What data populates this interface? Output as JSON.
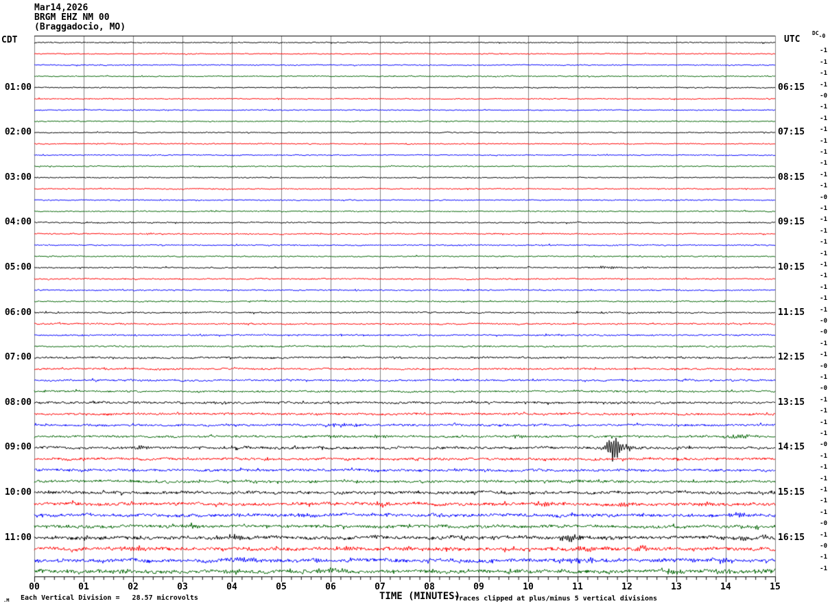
{
  "title": {
    "line1": "Mar14,2026",
    "line2": "BRGM EHZ NM 00",
    "line3": "(Braggadocio, MO)"
  },
  "axes": {
    "left_header": "CDT",
    "right_header": "UTC",
    "dc_header": "DC",
    "x_label": "TIME (MINUTES)",
    "x_ticks": [
      "00",
      "01",
      "02",
      "03",
      "04",
      "05",
      "06",
      "07",
      "08",
      "09",
      "10",
      "11",
      "12",
      "13",
      "14",
      "15"
    ],
    "x_range_minutes": [
      0,
      15
    ],
    "grid": "vertical lines each minute, 4 minor ticks per minute on bottom axis"
  },
  "footer": {
    "scale_note": "Each Vertical Division =   28.57 microvolts",
    "clip_note": "Traces clipped at plus/minus 5 vertical divisions",
    "corner_mark": ".M"
  },
  "colors": {
    "black": "#000000",
    "red": "#ff0000",
    "blue": "#0000ff",
    "green": "#006400",
    "grid": "#808080",
    "background": "#ffffff"
  },
  "chart_data": {
    "type": "line",
    "subtype": "helicorder",
    "minutes_per_line": 15,
    "lines_per_hour": 4,
    "clip_divisions": 5,
    "rows": [
      {
        "c": "black",
        "cdt": "",
        "utc": "",
        "dc": "-0",
        "n": 0.7,
        "w": 0.15,
        "ev": []
      },
      {
        "c": "red",
        "cdt": "",
        "utc": "",
        "dc": "-1",
        "n": 0.7,
        "w": 0.15,
        "ev": []
      },
      {
        "c": "blue",
        "cdt": "",
        "utc": "",
        "dc": "-1",
        "n": 0.7,
        "w": 0.15,
        "ev": []
      },
      {
        "c": "green",
        "cdt": "",
        "utc": "",
        "dc": "-1",
        "n": 0.7,
        "w": 0.15,
        "ev": []
      },
      {
        "c": "black",
        "cdt": "01:00",
        "utc": "06:15",
        "dc": "-1",
        "n": 0.7,
        "w": 0.15,
        "ev": []
      },
      {
        "c": "red",
        "cdt": "",
        "utc": "",
        "dc": "-0",
        "n": 0.7,
        "w": 0.15,
        "ev": []
      },
      {
        "c": "blue",
        "cdt": "",
        "utc": "",
        "dc": "-1",
        "n": 0.7,
        "w": 0.15,
        "ev": []
      },
      {
        "c": "green",
        "cdt": "",
        "utc": "",
        "dc": "-1",
        "n": 0.7,
        "w": 0.15,
        "ev": []
      },
      {
        "c": "black",
        "cdt": "02:00",
        "utc": "07:15",
        "dc": "-1",
        "n": 0.7,
        "w": 0.18,
        "ev": []
      },
      {
        "c": "red",
        "cdt": "",
        "utc": "",
        "dc": "-1",
        "n": 0.7,
        "w": 0.18,
        "ev": []
      },
      {
        "c": "blue",
        "cdt": "",
        "utc": "",
        "dc": "-1",
        "n": 0.7,
        "w": 0.18,
        "ev": []
      },
      {
        "c": "green",
        "cdt": "",
        "utc": "",
        "dc": "-1",
        "n": 0.7,
        "w": 0.18,
        "ev": []
      },
      {
        "c": "black",
        "cdt": "03:00",
        "utc": "08:15",
        "dc": "-1",
        "n": 0.75,
        "w": 0.2,
        "ev": []
      },
      {
        "c": "red",
        "cdt": "",
        "utc": "",
        "dc": "-1",
        "n": 0.75,
        "w": 0.2,
        "ev": []
      },
      {
        "c": "blue",
        "cdt": "",
        "utc": "",
        "dc": "-0",
        "n": 0.75,
        "w": 0.2,
        "ev": []
      },
      {
        "c": "green",
        "cdt": "",
        "utc": "",
        "dc": "-1",
        "n": 0.75,
        "w": 0.2,
        "ev": []
      },
      {
        "c": "black",
        "cdt": "04:00",
        "utc": "09:15",
        "dc": "-1",
        "n": 0.8,
        "w": 0.22,
        "ev": []
      },
      {
        "c": "red",
        "cdt": "",
        "utc": "",
        "dc": "-1",
        "n": 0.8,
        "w": 0.22,
        "ev": []
      },
      {
        "c": "blue",
        "cdt": "",
        "utc": "",
        "dc": "-1",
        "n": 0.8,
        "w": 0.22,
        "ev": []
      },
      {
        "c": "green",
        "cdt": "",
        "utc": "",
        "dc": "-1",
        "n": 0.8,
        "w": 0.22,
        "ev": []
      },
      {
        "c": "black",
        "cdt": "05:00",
        "utc": "10:15",
        "dc": "-1",
        "n": 0.85,
        "w": 0.25,
        "ev": [
          [
            11.6,
            0.5,
            2.2
          ],
          [
            12.3,
            0.3,
            1.5
          ]
        ]
      },
      {
        "c": "red",
        "cdt": "",
        "utc": "",
        "dc": "-1",
        "n": 0.85,
        "w": 0.25,
        "ev": []
      },
      {
        "c": "blue",
        "cdt": "",
        "utc": "",
        "dc": "-1",
        "n": 0.85,
        "w": 0.25,
        "ev": []
      },
      {
        "c": "green",
        "cdt": "",
        "utc": "",
        "dc": "-1",
        "n": 0.85,
        "w": 0.25,
        "ev": []
      },
      {
        "c": "black",
        "cdt": "06:00",
        "utc": "11:15",
        "dc": "-1",
        "n": 0.95,
        "w": 0.3,
        "ev": []
      },
      {
        "c": "red",
        "cdt": "",
        "utc": "",
        "dc": "-0",
        "n": 0.95,
        "w": 0.3,
        "ev": []
      },
      {
        "c": "blue",
        "cdt": "",
        "utc": "",
        "dc": "-0",
        "n": 0.95,
        "w": 0.3,
        "ev": []
      },
      {
        "c": "green",
        "cdt": "",
        "utc": "",
        "dc": "-1",
        "n": 0.95,
        "w": 0.3,
        "ev": []
      },
      {
        "c": "black",
        "cdt": "07:00",
        "utc": "12:15",
        "dc": "-1",
        "n": 1.15,
        "w": 0.4,
        "ev": []
      },
      {
        "c": "red",
        "cdt": "",
        "utc": "",
        "dc": "-0",
        "n": 1.15,
        "w": 0.4,
        "ev": []
      },
      {
        "c": "blue",
        "cdt": "",
        "utc": "",
        "dc": "-1",
        "n": 1.15,
        "w": 0.4,
        "ev": []
      },
      {
        "c": "green",
        "cdt": "",
        "utc": "",
        "dc": "-0",
        "n": 1.15,
        "w": 0.4,
        "ev": []
      },
      {
        "c": "black",
        "cdt": "08:00",
        "utc": "13:15",
        "dc": "-1",
        "n": 1.35,
        "w": 0.5,
        "ev": []
      },
      {
        "c": "red",
        "cdt": "",
        "utc": "",
        "dc": "-1",
        "n": 1.35,
        "w": 0.5,
        "ev": []
      },
      {
        "c": "blue",
        "cdt": "",
        "utc": "",
        "dc": "-1",
        "n": 1.35,
        "w": 0.5,
        "ev": [
          [
            6.3,
            0.6,
            2.2
          ]
        ]
      },
      {
        "c": "green",
        "cdt": "",
        "utc": "",
        "dc": "-1",
        "n": 1.35,
        "w": 0.5,
        "ev": [
          [
            6.1,
            0.3,
            2.8
          ],
          [
            7.0,
            0.25,
            3.5
          ],
          [
            9.8,
            0.3,
            2.2
          ],
          [
            14.3,
            0.4,
            2.8
          ]
        ]
      },
      {
        "c": "black",
        "cdt": "09:00",
        "utc": "14:15",
        "dc": "-0",
        "n": 1.55,
        "w": 0.6,
        "ev": [
          [
            2.2,
            0.3,
            2.8
          ],
          [
            11.75,
            0.3,
            22
          ],
          [
            12.0,
            0.3,
            6
          ]
        ]
      },
      {
        "c": "red",
        "cdt": "",
        "utc": "",
        "dc": "-1",
        "n": 1.55,
        "w": 0.6,
        "ev": []
      },
      {
        "c": "blue",
        "cdt": "",
        "utc": "",
        "dc": "-1",
        "n": 1.55,
        "w": 0.6,
        "ev": []
      },
      {
        "c": "green",
        "cdt": "",
        "utc": "",
        "dc": "-1",
        "n": 1.55,
        "w": 0.6,
        "ev": []
      },
      {
        "c": "black",
        "cdt": "10:00",
        "utc": "15:15",
        "dc": "-1",
        "n": 1.85,
        "w": 0.8,
        "ev": []
      },
      {
        "c": "red",
        "cdt": "",
        "utc": "",
        "dc": "-1",
        "n": 1.85,
        "w": 0.8,
        "ev": [
          [
            7.0,
            0.3,
            2.5
          ],
          [
            10.35,
            0.4,
            3.8
          ],
          [
            11.95,
            0.45,
            3.8
          ],
          [
            13.6,
            0.3,
            2.5
          ]
        ]
      },
      {
        "c": "blue",
        "cdt": "",
        "utc": "",
        "dc": "-1",
        "n": 1.85,
        "w": 0.8,
        "ev": [
          [
            5.5,
            0.5,
            2.8
          ],
          [
            14.25,
            0.4,
            3.2
          ]
        ]
      },
      {
        "c": "green",
        "cdt": "",
        "utc": "",
        "dc": "-0",
        "n": 1.85,
        "w": 0.8,
        "ev": [
          [
            3.1,
            0.3,
            2.2
          ],
          [
            6.8,
            0.3,
            2.2
          ],
          [
            14.6,
            0.3,
            2.2
          ]
        ]
      },
      {
        "c": "black",
        "cdt": "11:00",
        "utc": "16:15",
        "dc": "-1",
        "n": 2.1,
        "w": 1.0,
        "ev": [
          [
            1.5,
            0.3,
            2.4
          ],
          [
            4.1,
            0.3,
            2.8
          ],
          [
            6.9,
            0.3,
            2.8
          ],
          [
            10.85,
            0.35,
            6.5
          ],
          [
            11.6,
            0.2,
            2.8
          ],
          [
            14.4,
            0.3,
            2.5
          ]
        ]
      },
      {
        "c": "red",
        "cdt": "",
        "utc": "",
        "dc": "-0",
        "n": 2.1,
        "w": 1.0,
        "ev": [
          [
            1.8,
            0.4,
            3.8
          ],
          [
            2.1,
            0.2,
            4.5
          ],
          [
            6.4,
            0.4,
            4.5
          ],
          [
            7.6,
            0.2,
            2.8
          ],
          [
            11.15,
            0.4,
            3.8
          ],
          [
            12.3,
            0.3,
            3.8
          ],
          [
            13.3,
            0.25,
            2.8
          ]
        ]
      },
      {
        "c": "blue",
        "cdt": "",
        "utc": "",
        "dc": "-1",
        "n": 2.1,
        "w": 1.0,
        "ev": [
          [
            4.4,
            0.5,
            2.8
          ],
          [
            5.6,
            0.3,
            2.8
          ],
          [
            10.9,
            0.5,
            3.0
          ],
          [
            11.3,
            0.3,
            3.0
          ],
          [
            13.9,
            0.4,
            3.2
          ]
        ]
      },
      {
        "c": "green",
        "cdt": "",
        "utc": "",
        "dc": "-1",
        "n": 2.1,
        "w": 1.0,
        "ev": [
          [
            1.7,
            0.4,
            2.4
          ],
          [
            4.0,
            0.4,
            4.2
          ],
          [
            5.9,
            0.5,
            3.8
          ],
          [
            6.2,
            0.3,
            2.8
          ],
          [
            9.6,
            0.3,
            2.4
          ],
          [
            13.0,
            0.4,
            3.2
          ],
          [
            14.7,
            0.3,
            2.5
          ]
        ]
      }
    ]
  }
}
